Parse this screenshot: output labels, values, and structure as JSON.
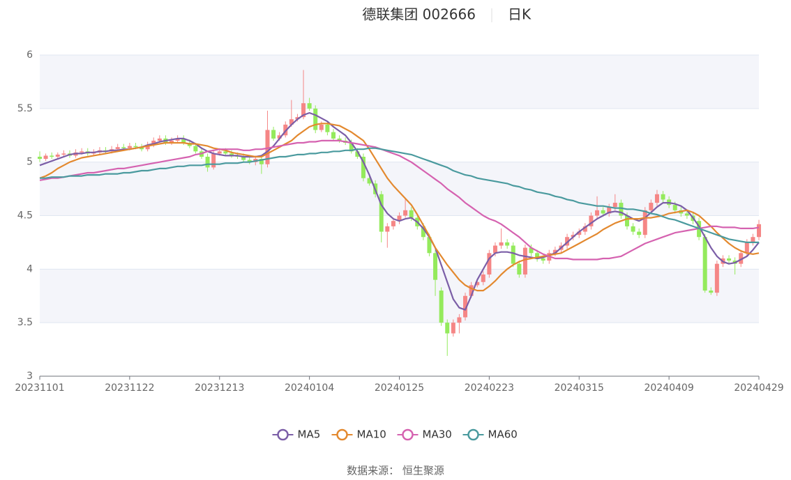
{
  "chart_data": {
    "type": "candlestick",
    "title": "德联集团 002666",
    "period": "日K",
    "source": "数据来源： 恒生聚源",
    "up_color": "#f58686",
    "down_color": "#94ea5c",
    "ylim": [
      3,
      6
    ],
    "yticks": [
      3,
      3.5,
      4,
      4.5,
      5,
      5.5,
      6
    ],
    "grid": true,
    "legend": "bottom",
    "categories": [
      "20231101",
      null,
      null,
      null,
      null,
      null,
      null,
      null,
      null,
      null,
      null,
      null,
      null,
      null,
      null,
      "20231122",
      null,
      null,
      null,
      null,
      null,
      null,
      null,
      null,
      null,
      null,
      null,
      null,
      null,
      null,
      "20231213",
      null,
      null,
      null,
      null,
      null,
      null,
      null,
      null,
      null,
      null,
      null,
      null,
      null,
      null,
      "20240104",
      null,
      null,
      null,
      null,
      null,
      null,
      null,
      null,
      null,
      null,
      null,
      null,
      null,
      null,
      "20240125",
      null,
      null,
      null,
      null,
      null,
      null,
      null,
      null,
      null,
      null,
      null,
      null,
      null,
      null,
      "20240223",
      null,
      null,
      null,
      null,
      null,
      null,
      null,
      null,
      null,
      null,
      null,
      null,
      null,
      null,
      "20240315",
      null,
      null,
      null,
      null,
      null,
      null,
      null,
      null,
      null,
      null,
      null,
      null,
      null,
      null,
      "20240409",
      null,
      null,
      null,
      null,
      null,
      null,
      null,
      null,
      null,
      null,
      null,
      null,
      null,
      null,
      "20240429"
    ],
    "open": [
      5.05,
      5.03,
      5.06,
      5.05,
      5.07,
      5.08,
      5.06,
      5.09,
      5.1,
      5.08,
      5.09,
      5.11,
      5.1,
      5.12,
      5.14,
      5.13,
      5.15,
      5.14,
      5.12,
      5.16,
      5.2,
      5.22,
      5.18,
      5.2,
      5.22,
      5.18,
      5.15,
      5.1,
      5.05,
      4.95,
      5.08,
      5.1,
      5.08,
      5.06,
      5.05,
      5.02,
      5.0,
      5.03,
      4.98,
      5.3,
      5.22,
      5.25,
      5.35,
      5.4,
      5.42,
      5.55,
      5.5,
      5.3,
      5.35,
      5.28,
      5.22,
      5.2,
      5.18,
      5.1,
      5.05,
      4.85,
      4.8,
      4.7,
      4.35,
      4.4,
      4.45,
      4.5,
      4.55,
      4.48,
      4.4,
      4.3,
      4.15,
      3.8,
      3.5,
      3.4,
      3.5,
      3.55,
      3.75,
      3.85,
      3.88,
      3.95,
      4.15,
      4.22,
      4.25,
      4.22,
      4.05,
      3.95,
      4.2,
      4.15,
      4.1,
      4.08,
      4.15,
      4.18,
      4.22,
      4.3,
      4.32,
      4.35,
      4.4,
      4.5,
      4.55,
      4.52,
      4.58,
      4.62,
      4.5,
      4.4,
      4.35,
      4.32,
      4.55,
      4.62,
      4.7,
      4.65,
      4.6,
      4.55,
      4.52,
      4.5,
      4.45,
      4.3,
      3.8,
      3.78,
      4.05,
      4.1,
      4.08,
      4.05,
      4.15,
      4.25,
      4.3
    ],
    "high": [
      5.1,
      5.08,
      5.09,
      5.09,
      5.11,
      5.11,
      5.12,
      5.13,
      5.13,
      5.12,
      5.14,
      5.14,
      5.15,
      5.17,
      5.17,
      5.18,
      5.18,
      5.17,
      5.19,
      5.23,
      5.25,
      5.25,
      5.23,
      5.25,
      5.25,
      5.21,
      5.18,
      5.13,
      5.08,
      5.11,
      5.13,
      5.13,
      5.11,
      5.09,
      5.08,
      5.05,
      5.06,
      5.06,
      5.48,
      5.33,
      5.28,
      5.38,
      5.58,
      5.45,
      5.86,
      5.6,
      5.53,
      5.38,
      5.38,
      5.31,
      5.25,
      5.23,
      5.21,
      5.13,
      5.08,
      4.88,
      4.83,
      4.73,
      4.43,
      4.48,
      4.53,
      4.66,
      4.58,
      4.51,
      4.43,
      4.33,
      4.18,
      3.83,
      3.53,
      3.53,
      3.58,
      3.78,
      3.88,
      3.91,
      3.98,
      4.18,
      4.25,
      4.38,
      4.28,
      4.25,
      4.08,
      4.23,
      4.23,
      4.18,
      4.13,
      4.18,
      4.21,
      4.25,
      4.33,
      4.35,
      4.38,
      4.43,
      4.53,
      4.68,
      4.58,
      4.61,
      4.7,
      4.65,
      4.53,
      4.43,
      4.38,
      4.58,
      4.65,
      4.74,
      4.73,
      4.68,
      4.63,
      4.58,
      4.55,
      4.53,
      4.48,
      4.33,
      3.83,
      4.08,
      4.13,
      4.13,
      4.11,
      4.18,
      4.28,
      4.33,
      4.46
    ],
    "low": [
      5.0,
      5.01,
      5.03,
      5.03,
      5.05,
      5.04,
      5.04,
      5.07,
      5.06,
      5.06,
      5.07,
      5.08,
      5.08,
      5.1,
      5.11,
      5.11,
      5.12,
      5.1,
      5.1,
      5.14,
      5.18,
      5.16,
      5.16,
      5.18,
      5.16,
      5.13,
      5.08,
      5.03,
      4.91,
      4.93,
      5.06,
      5.06,
      5.04,
      5.03,
      5.0,
      4.98,
      4.97,
      4.89,
      4.95,
      5.2,
      5.2,
      5.23,
      5.33,
      5.38,
      5.4,
      5.48,
      5.27,
      5.28,
      5.25,
      5.2,
      5.18,
      5.16,
      5.08,
      5.03,
      4.82,
      4.78,
      4.67,
      4.25,
      4.2,
      4.37,
      4.42,
      4.48,
      4.45,
      4.37,
      4.27,
      4.12,
      3.75,
      3.47,
      3.19,
      3.37,
      3.4,
      3.52,
      3.73,
      3.83,
      3.85,
      3.92,
      4.12,
      4.19,
      4.19,
      4.02,
      3.92,
      3.92,
      4.12,
      4.07,
      4.05,
      4.05,
      4.12,
      4.15,
      4.19,
      4.27,
      4.29,
      4.32,
      4.37,
      4.47,
      4.49,
      4.49,
      4.55,
      4.47,
      4.37,
      4.32,
      4.29,
      4.29,
      4.52,
      4.59,
      4.62,
      4.57,
      4.52,
      4.49,
      4.47,
      4.42,
      4.27,
      3.78,
      3.76,
      3.75,
      4.02,
      4.05,
      3.95,
      4.02,
      4.12,
      4.22,
      4.27
    ],
    "close": [
      5.03,
      5.06,
      5.05,
      5.07,
      5.08,
      5.06,
      5.09,
      5.1,
      5.08,
      5.09,
      5.11,
      5.1,
      5.12,
      5.14,
      5.13,
      5.15,
      5.14,
      5.12,
      5.16,
      5.2,
      5.22,
      5.18,
      5.2,
      5.22,
      5.18,
      5.15,
      5.1,
      5.05,
      4.95,
      5.08,
      5.1,
      5.08,
      5.06,
      5.05,
      5.02,
      5.0,
      5.03,
      4.98,
      5.3,
      5.22,
      5.25,
      5.35,
      5.4,
      5.42,
      5.55,
      5.5,
      5.3,
      5.35,
      5.28,
      5.22,
      5.2,
      5.18,
      5.1,
      5.05,
      4.85,
      4.8,
      4.7,
      4.35,
      4.4,
      4.45,
      4.5,
      4.55,
      4.48,
      4.4,
      4.3,
      4.15,
      3.9,
      3.5,
      3.4,
      3.5,
      3.55,
      3.75,
      3.85,
      3.88,
      3.95,
      4.15,
      4.22,
      4.25,
      4.22,
      4.05,
      3.95,
      4.2,
      4.15,
      4.1,
      4.08,
      4.15,
      4.18,
      4.22,
      4.3,
      4.32,
      4.35,
      4.4,
      4.5,
      4.55,
      4.52,
      4.58,
      4.62,
      4.5,
      4.4,
      4.35,
      4.32,
      4.55,
      4.62,
      4.7,
      4.65,
      4.6,
      4.55,
      4.52,
      4.5,
      4.45,
      4.3,
      3.8,
      3.78,
      4.05,
      4.1,
      4.08,
      4.05,
      4.15,
      4.25,
      4.3,
      4.42
    ],
    "series": [
      {
        "name": "MA5",
        "color": "#7b5ea7",
        "values": [
          4.97,
          4.99,
          5.01,
          5.03,
          5.05,
          5.07,
          5.08,
          5.08,
          5.09,
          5.09,
          5.1,
          5.1,
          5.11,
          5.11,
          5.12,
          5.12,
          5.13,
          5.14,
          5.16,
          5.17,
          5.19,
          5.2,
          5.21,
          5.22,
          5.22,
          5.2,
          5.17,
          5.13,
          5.1,
          5.08,
          5.07,
          5.06,
          5.06,
          5.06,
          5.05,
          5.05,
          5.05,
          5.06,
          5.1,
          5.15,
          5.22,
          5.29,
          5.35,
          5.4,
          5.44,
          5.46,
          5.44,
          5.41,
          5.38,
          5.33,
          5.29,
          5.25,
          5.18,
          5.1,
          5.0,
          4.88,
          4.74,
          4.6,
          4.52,
          4.47,
          4.45,
          4.47,
          4.48,
          4.44,
          4.38,
          4.3,
          4.2,
          4.04,
          3.88,
          3.72,
          3.64,
          3.62,
          3.75,
          3.9,
          4.0,
          4.1,
          4.15,
          4.16,
          4.16,
          4.15,
          4.13,
          4.12,
          4.11,
          4.1,
          4.11,
          4.13,
          4.15,
          4.2,
          4.25,
          4.3,
          4.35,
          4.39,
          4.43,
          4.47,
          4.5,
          4.53,
          4.54,
          4.53,
          4.5,
          4.47,
          4.45,
          4.48,
          4.53,
          4.58,
          4.62,
          4.62,
          4.61,
          4.59,
          4.55,
          4.48,
          4.4,
          4.3,
          4.2,
          4.12,
          4.07,
          4.05,
          4.06,
          4.09,
          4.12,
          4.18,
          4.25
        ]
      },
      {
        "name": "MA10",
        "color": "#e3892f",
        "values": [
          4.85,
          4.87,
          4.9,
          4.94,
          4.97,
          5.0,
          5.02,
          5.04,
          5.05,
          5.06,
          5.07,
          5.08,
          5.09,
          5.1,
          5.11,
          5.12,
          5.13,
          5.14,
          5.15,
          5.16,
          5.17,
          5.18,
          5.18,
          5.18,
          5.18,
          5.17,
          5.17,
          5.16,
          5.15,
          5.13,
          5.12,
          5.11,
          5.09,
          5.08,
          5.07,
          5.06,
          5.05,
          5.05,
          5.08,
          5.11,
          5.14,
          5.17,
          5.2,
          5.25,
          5.29,
          5.33,
          5.35,
          5.36,
          5.36,
          5.35,
          5.34,
          5.31,
          5.28,
          5.24,
          5.2,
          5.12,
          5.03,
          4.94,
          4.85,
          4.78,
          4.72,
          4.66,
          4.6,
          4.51,
          4.41,
          4.31,
          4.2,
          4.12,
          4.04,
          3.97,
          3.9,
          3.85,
          3.82,
          3.8,
          3.8,
          3.84,
          3.89,
          3.95,
          4.0,
          4.04,
          4.07,
          4.09,
          4.1,
          4.11,
          4.12,
          4.13,
          4.14,
          4.15,
          4.18,
          4.21,
          4.24,
          4.27,
          4.3,
          4.33,
          4.37,
          4.4,
          4.43,
          4.45,
          4.47,
          4.47,
          4.47,
          4.48,
          4.48,
          4.49,
          4.5,
          4.52,
          4.53,
          4.54,
          4.55,
          4.53,
          4.5,
          4.45,
          4.4,
          4.34,
          4.29,
          4.24,
          4.2,
          4.17,
          4.15,
          4.14,
          4.15
        ]
      },
      {
        "name": "MA30",
        "color": "#d562b0",
        "values": [
          4.83,
          4.84,
          4.85,
          4.85,
          4.86,
          4.87,
          4.88,
          4.89,
          4.9,
          4.9,
          4.91,
          4.92,
          4.93,
          4.94,
          4.94,
          4.95,
          4.96,
          4.97,
          4.98,
          4.99,
          5.0,
          5.01,
          5.02,
          5.03,
          5.04,
          5.05,
          5.07,
          5.08,
          5.1,
          5.11,
          5.12,
          5.12,
          5.12,
          5.12,
          5.11,
          5.11,
          5.12,
          5.12,
          5.13,
          5.14,
          5.15,
          5.16,
          5.17,
          5.18,
          5.18,
          5.19,
          5.19,
          5.2,
          5.2,
          5.2,
          5.2,
          5.19,
          5.18,
          5.17,
          5.16,
          5.15,
          5.14,
          5.12,
          5.1,
          5.08,
          5.06,
          5.03,
          5.0,
          4.96,
          4.92,
          4.88,
          4.84,
          4.8,
          4.75,
          4.71,
          4.67,
          4.62,
          4.58,
          4.54,
          4.5,
          4.47,
          4.45,
          4.42,
          4.38,
          4.34,
          4.3,
          4.25,
          4.2,
          4.17,
          4.14,
          4.12,
          4.1,
          4.1,
          4.1,
          4.09,
          4.09,
          4.09,
          4.09,
          4.09,
          4.1,
          4.1,
          4.11,
          4.12,
          4.15,
          4.18,
          4.21,
          4.24,
          4.26,
          4.28,
          4.3,
          4.32,
          4.34,
          4.35,
          4.36,
          4.37,
          4.38,
          4.39,
          4.4,
          4.4,
          4.39,
          4.39,
          4.39,
          4.38,
          4.38,
          4.38,
          4.39
        ]
      },
      {
        "name": "MA60",
        "color": "#4a9a9e",
        "values": [
          4.85,
          4.85,
          4.86,
          4.86,
          4.86,
          4.87,
          4.87,
          4.87,
          4.88,
          4.88,
          4.88,
          4.89,
          4.89,
          4.89,
          4.9,
          4.9,
          4.91,
          4.92,
          4.92,
          4.93,
          4.94,
          4.94,
          4.95,
          4.96,
          4.96,
          4.97,
          4.97,
          4.97,
          4.98,
          4.98,
          4.98,
          4.99,
          4.99,
          4.99,
          5.0,
          5.0,
          5.01,
          5.02,
          5.03,
          5.04,
          5.05,
          5.05,
          5.06,
          5.07,
          5.07,
          5.08,
          5.08,
          5.09,
          5.09,
          5.1,
          5.1,
          5.11,
          5.11,
          5.12,
          5.12,
          5.13,
          5.13,
          5.12,
          5.11,
          5.1,
          5.09,
          5.08,
          5.07,
          5.05,
          5.03,
          5.01,
          4.99,
          4.97,
          4.95,
          4.92,
          4.9,
          4.88,
          4.87,
          4.85,
          4.84,
          4.83,
          4.82,
          4.81,
          4.8,
          4.78,
          4.77,
          4.75,
          4.74,
          4.72,
          4.71,
          4.7,
          4.68,
          4.67,
          4.65,
          4.64,
          4.62,
          4.61,
          4.6,
          4.59,
          4.59,
          4.58,
          4.57,
          4.57,
          4.56,
          4.56,
          4.55,
          4.54,
          4.52,
          4.51,
          4.49,
          4.47,
          4.46,
          4.44,
          4.42,
          4.4,
          4.38,
          4.36,
          4.34,
          4.32,
          4.3,
          4.28,
          4.27,
          4.26,
          4.25,
          4.25,
          4.25
        ]
      }
    ]
  }
}
